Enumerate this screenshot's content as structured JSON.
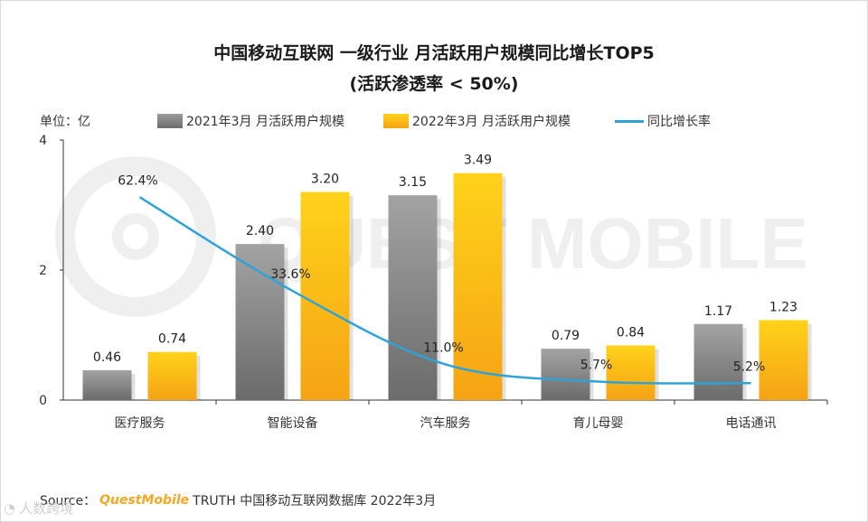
{
  "title_line1": "中国移动互联网 一级行业 月活跃用户规模同比增长TOP5",
  "title_line2": "(活跃渗透率 < 50%)",
  "unit_label": "单位：亿",
  "legend": [
    "2021年3月 月活跃用户规模",
    "2022年3月 月活跃用户规模",
    "同比增长率"
  ],
  "source_prefix": "Source：",
  "source_brand": "QuestMobile",
  "source_suffix": "TRUTH 中国移动互联网数据库 2022年3月",
  "watermark_text": "QUEST MOBILE",
  "corner_watermark": "人数跨境",
  "colors": {
    "bar2021": "#808080",
    "bar2022": "#fbbf1a",
    "line": "#2fa3d8"
  },
  "chart_data": {
    "type": "bar",
    "categories": [
      "医疗服务",
      "智能设备",
      "汽车服务",
      "育儿母婴",
      "电话通讯"
    ],
    "series": [
      {
        "name": "2021年3月 月活跃用户规模",
        "values": [
          0.46,
          2.4,
          3.15,
          0.79,
          1.17
        ],
        "labels": [
          "0.46",
          "2.40",
          "3.15",
          "0.79",
          "1.17"
        ]
      },
      {
        "name": "2022年3月 月活跃用户规模",
        "values": [
          0.74,
          3.2,
          3.49,
          0.84,
          1.23
        ],
        "labels": [
          "0.74",
          "3.20",
          "3.49",
          "0.84",
          "1.23"
        ]
      }
    ],
    "line_series": {
      "name": "同比增长率",
      "values": [
        62.4,
        33.6,
        11.0,
        5.7,
        5.2
      ],
      "labels": [
        "62.4%",
        "33.6%",
        "11.0%",
        "5.7%",
        "5.2%"
      ]
    },
    "y_ticks": [
      "0",
      "2",
      "4"
    ],
    "ylim": [
      0,
      4
    ],
    "line_ylim": [
      0,
      80
    ],
    "unit": "亿"
  }
}
